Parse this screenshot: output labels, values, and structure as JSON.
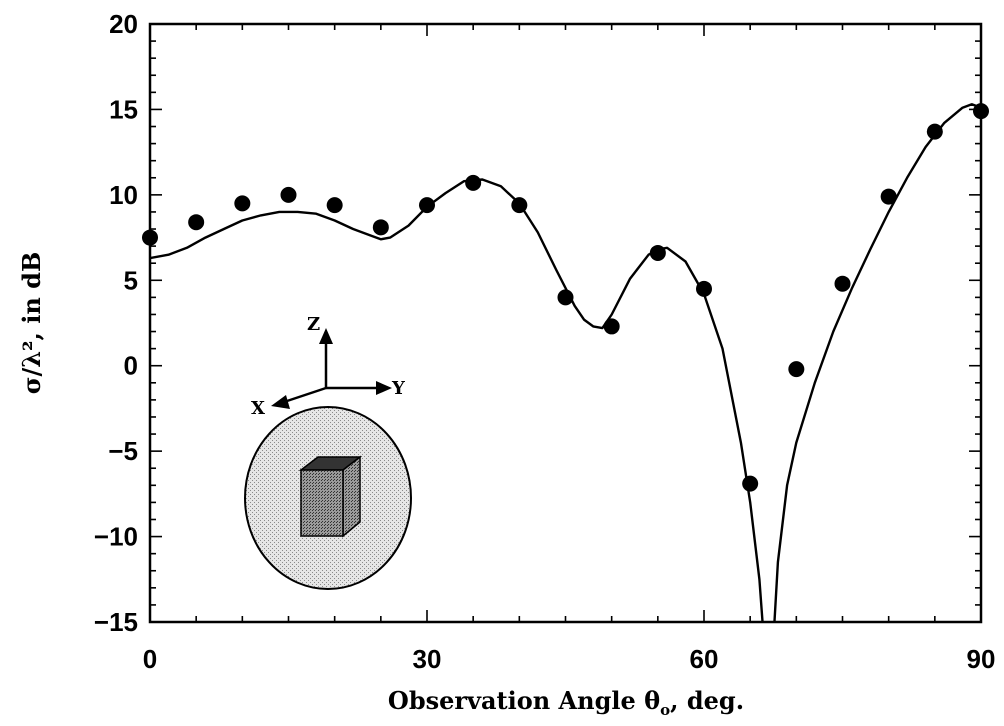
{
  "chart_data": {
    "type": "line",
    "title": "",
    "xlabel": "Observation Angle θₒ, deg.",
    "xlabel_parts": {
      "main": "Observation Angle θ",
      "sub": "o",
      "rest": ", deg."
    },
    "ylabel": "σ/λ², in dB",
    "xlim": [
      0,
      90
    ],
    "ylim": [
      -15,
      20
    ],
    "x_ticks": [
      0,
      30,
      60,
      90
    ],
    "x_tick_labels": [
      "0",
      "30",
      "60",
      "90"
    ],
    "y_ticks": [
      -15,
      -10,
      -5,
      0,
      5,
      10,
      15,
      20
    ],
    "y_tick_labels": [
      "−15",
      "−10",
      "−5",
      "0",
      "5",
      "10",
      "15",
      "20"
    ],
    "grid": false,
    "legend": "none",
    "series": [
      {
        "style": "line",
        "x": [
          0,
          2,
          4,
          6,
          8,
          10,
          12,
          14,
          16,
          18,
          20,
          22,
          24,
          25,
          26,
          28,
          30,
          32,
          34,
          36,
          38,
          40,
          42,
          44,
          46,
          47,
          48,
          49,
          50,
          52,
          54,
          55,
          56,
          58,
          60,
          62,
          64,
          65,
          66,
          66.5,
          67.5,
          68,
          69,
          70,
          72,
          74,
          76,
          78,
          80,
          82,
          84,
          86,
          88,
          89,
          90
        ],
        "y": [
          6.3,
          6.5,
          6.9,
          7.5,
          8.0,
          8.5,
          8.8,
          9.0,
          9.0,
          8.9,
          8.5,
          8.0,
          7.6,
          7.4,
          7.5,
          8.2,
          9.3,
          10.1,
          10.8,
          10.9,
          10.5,
          9.5,
          7.8,
          5.6,
          3.5,
          2.7,
          2.3,
          2.2,
          3.0,
          5.1,
          6.5,
          6.8,
          6.9,
          6.1,
          4.2,
          1.0,
          -4.5,
          -8.0,
          -12.5,
          -15.0,
          -15.0,
          -11.5,
          -7.0,
          -4.5,
          -1.0,
          2.0,
          4.5,
          6.8,
          9.0,
          11.0,
          12.8,
          14.2,
          15.1,
          15.3,
          15.1
        ]
      },
      {
        "style": "markers",
        "x": [
          0,
          5,
          10,
          15,
          20,
          25,
          30,
          35,
          40,
          45,
          50,
          55,
          60,
          65,
          70,
          75,
          80,
          85,
          90
        ],
        "y": [
          7.5,
          8.4,
          9.5,
          10.0,
          9.4,
          8.1,
          9.4,
          10.7,
          9.4,
          4.0,
          2.3,
          6.6,
          4.5,
          -6.9,
          -0.2,
          4.8,
          9.9,
          13.7,
          14.9
        ]
      }
    ],
    "inset": {
      "axis_labels": [
        "Z",
        "Y",
        "X"
      ]
    }
  }
}
